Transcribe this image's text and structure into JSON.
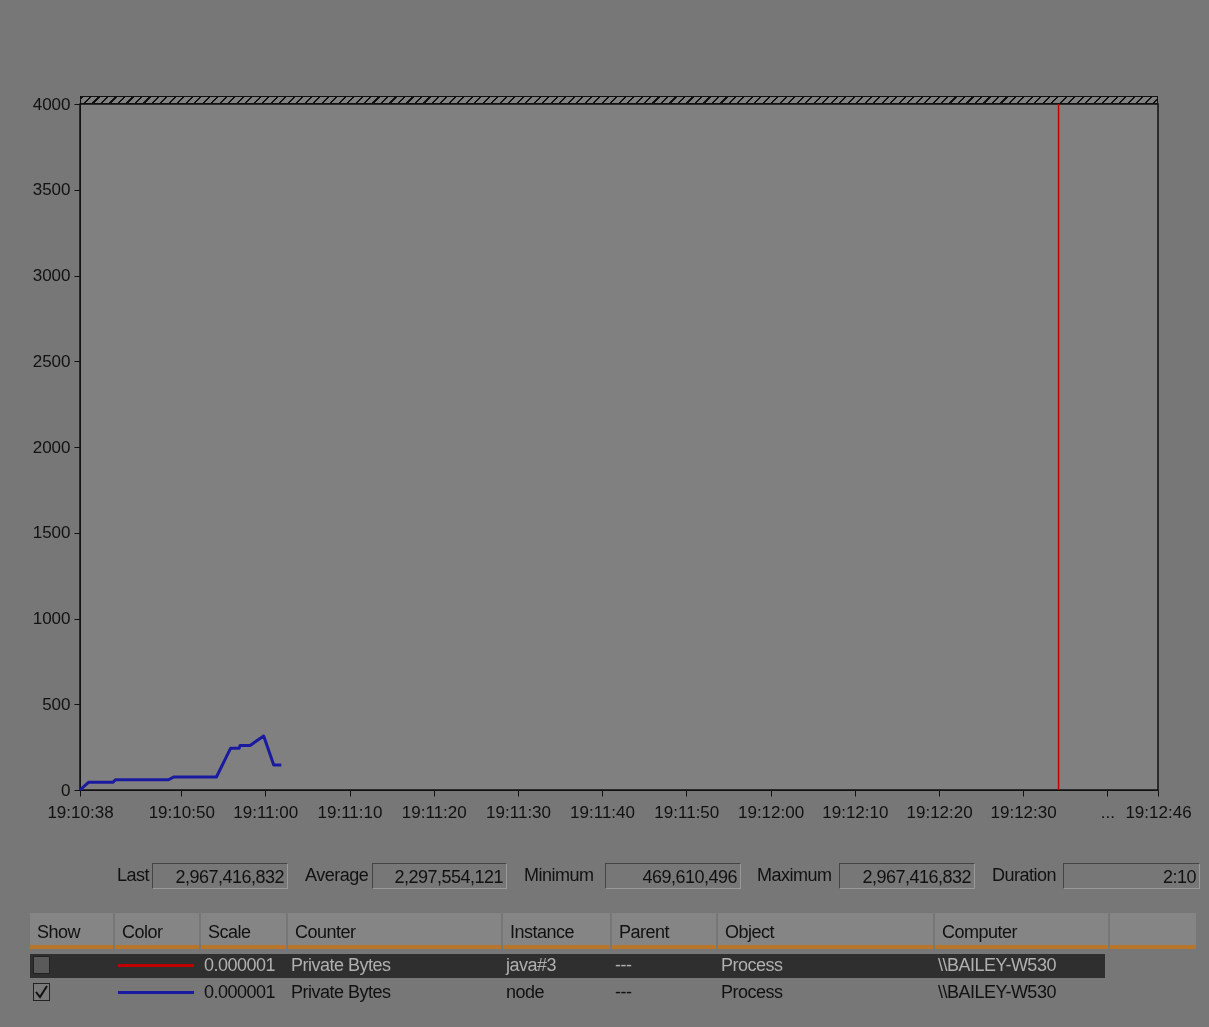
{
  "chart_data": {
    "type": "line",
    "x": [
      19.17722,
      19.1775,
      19.17831,
      19.17839,
      19.18014,
      19.18031,
      19.18172,
      19.18219,
      19.18247,
      19.1825,
      19.18283,
      19.18328,
      19.18361,
      19.18386
    ],
    "series": [
      {
        "color": "#1a1aa0",
        "values": [
          0,
          45,
          45,
          60,
          60,
          76,
          76,
          244,
          244,
          260,
          260,
          315,
          146,
          146
        ]
      }
    ],
    "xlim": [
      19.17722,
      19.21278
    ],
    "xticks": [
      {
        "value": 19.17722,
        "label": "19:10:38"
      },
      {
        "value": 19.18056,
        "label": "19:10:50"
      },
      {
        "value": 19.18333,
        "label": "19:11:00"
      },
      {
        "value": 19.18611,
        "label": "19:11:10"
      },
      {
        "value": 19.18889,
        "label": "19:11:20"
      },
      {
        "value": 19.19167,
        "label": "19:11:30"
      },
      {
        "value": 19.19444,
        "label": "19:11:40"
      },
      {
        "value": 19.19722,
        "label": "19:11:50"
      },
      {
        "value": 19.2,
        "label": "19:12:00"
      },
      {
        "value": 19.20278,
        "label": "19:12:10"
      },
      {
        "value": 19.20556,
        "label": "19:12:20"
      },
      {
        "value": 19.20833,
        "label": "19:12:30"
      },
      {
        "value": 19.21111,
        "label": "..."
      },
      {
        "value": 19.21278,
        "label": "19:12:46"
      }
    ],
    "ylim": [
      0,
      4000
    ],
    "yticks": [
      0,
      500,
      1000,
      1500,
      2000,
      2500,
      3000,
      3500,
      4000
    ],
    "ref_lines": [
      {
        "axis": "x",
        "value": 19.2095,
        "color": "#c00000"
      }
    ],
    "annotations": [
      "Last",
      "2,967,416,832",
      "Average",
      "2,297,554,121",
      "Minimum",
      "469,610,496",
      "Maximum",
      "2,967,416,832",
      "Duration",
      "2:10",
      "Show",
      "Color",
      "Scale",
      "Counter",
      "Instance",
      "Parent",
      "Object",
      "Computer",
      "0.000001",
      "Private Bytes",
      "java#3",
      "---",
      "Process",
      "\\\\BAILEY-W530",
      "0.000001",
      "Private Bytes",
      "node",
      "---",
      "Process",
      "\\\\BAILEY-W530"
    ]
  }
}
